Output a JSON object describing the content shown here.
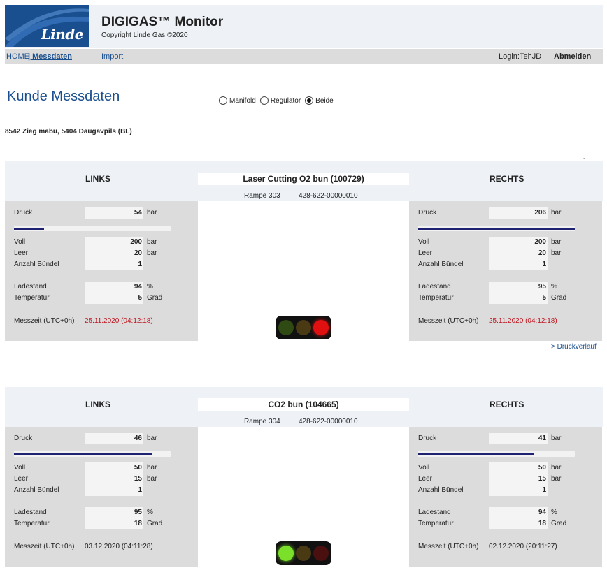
{
  "header": {
    "logo_text": "Linde",
    "title": "DIGIGAS™ Monitor",
    "copyright": "Copyright Linde Gas ©2020"
  },
  "nav": {
    "home": "HOME",
    "messdaten": "| Messdaten",
    "import": "Import",
    "login": "Login:TehJD",
    "logout": "Abmelden"
  },
  "page": {
    "title": "Kunde Messdaten",
    "radio_options": [
      "Manifold",
      "Regulator",
      "Beide"
    ],
    "radio_selected": "Beide",
    "customer": "8542 Zieg mabu, 5404 Daugavpils (BL)",
    "dots": ". .",
    "druckverlauf_link": "> Druckverlauf"
  },
  "colors": {
    "brand": "#1a4f8f",
    "bar_fill": "#1e2270",
    "alert_red": "#c0141e",
    "lamp_green_on": "#7be02a",
    "lamp_red_on": "#e01010"
  },
  "labels": {
    "left": "LINKS",
    "right": "RECHTS",
    "druck": "Druck",
    "voll": "Voll",
    "leer": "Leer",
    "anzahl": "Anzahl Bündel",
    "ladestand": "Ladestand",
    "temperatur": "Temperatur",
    "messzeit": "Messzeit (UTC+0h)",
    "unit_bar": "bar",
    "unit_pct": "%",
    "unit_grad": "Grad"
  },
  "units": [
    {
      "name": "Laser Cutting O2 bun (100729)",
      "rampe": "Rampe 303",
      "serial": "428-622-00000010",
      "traffic_light": {
        "green": false,
        "yellow": false,
        "red": true
      },
      "left": {
        "druck": "54",
        "druck_fraction": 0.19,
        "voll": "200",
        "leer": "20",
        "anzahl": "1",
        "ladestand": "94",
        "temperatur": "5",
        "messzeit": "25.11.2020 (04:12:18)",
        "messzeit_alert": true
      },
      "right": {
        "druck": "206",
        "druck_fraction": 1.0,
        "voll": "200",
        "leer": "20",
        "anzahl": "1",
        "ladestand": "95",
        "temperatur": "5",
        "messzeit": "25.11.2020 (04:12:18)",
        "messzeit_alert": true
      }
    },
    {
      "name": "CO2 bun (104665)",
      "rampe": "Rampe 304",
      "serial": "428-622-00000010",
      "traffic_light": {
        "green": true,
        "yellow": false,
        "red": false
      },
      "left": {
        "druck": "46",
        "druck_fraction": 0.88,
        "voll": "50",
        "leer": "15",
        "anzahl": "1",
        "ladestand": "95",
        "temperatur": "18",
        "messzeit": "03.12.2020 (04:11:28)",
        "messzeit_alert": false
      },
      "right": {
        "druck": "41",
        "druck_fraction": 0.74,
        "voll": "50",
        "leer": "15",
        "anzahl": "1",
        "ladestand": "94",
        "temperatur": "18",
        "messzeit": "02.12.2020 (20:11:27)",
        "messzeit_alert": false
      }
    }
  ]
}
